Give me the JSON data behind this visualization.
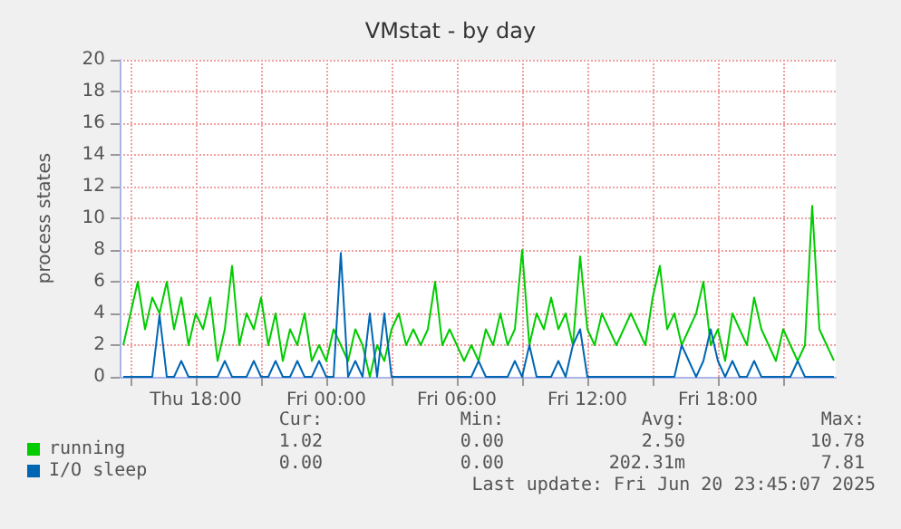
{
  "chart_data": {
    "type": "line",
    "title": "VMstat - by day",
    "ylabel": "process states",
    "x": [
      "2025-06-19T14:40",
      "2025-06-19T15:00",
      "2025-06-19T15:20",
      "2025-06-19T15:40",
      "2025-06-19T16:00",
      "2025-06-19T16:20",
      "2025-06-19T16:40",
      "2025-06-19T17:00",
      "2025-06-19T17:20",
      "2025-06-19T17:40",
      "2025-06-19T18:00",
      "2025-06-19T18:20",
      "2025-06-19T18:40",
      "2025-06-19T19:00",
      "2025-06-19T19:20",
      "2025-06-19T19:40",
      "2025-06-19T20:00",
      "2025-06-19T20:20",
      "2025-06-19T20:40",
      "2025-06-19T21:00",
      "2025-06-19T21:20",
      "2025-06-19T21:40",
      "2025-06-19T22:00",
      "2025-06-19T22:20",
      "2025-06-19T22:40",
      "2025-06-19T23:00",
      "2025-06-19T23:20",
      "2025-06-19T23:40",
      "2025-06-20T00:00",
      "2025-06-20T00:20",
      "2025-06-20T00:40",
      "2025-06-20T01:00",
      "2025-06-20T01:20",
      "2025-06-20T01:40",
      "2025-06-20T02:00",
      "2025-06-20T02:20",
      "2025-06-20T02:40",
      "2025-06-20T03:00",
      "2025-06-20T03:20",
      "2025-06-20T03:40",
      "2025-06-20T04:00",
      "2025-06-20T04:20",
      "2025-06-20T04:40",
      "2025-06-20T05:00",
      "2025-06-20T05:20",
      "2025-06-20T05:40",
      "2025-06-20T06:00",
      "2025-06-20T06:20",
      "2025-06-20T06:40",
      "2025-06-20T07:00",
      "2025-06-20T07:20",
      "2025-06-20T07:40",
      "2025-06-20T08:00",
      "2025-06-20T08:20",
      "2025-06-20T08:40",
      "2025-06-20T09:00",
      "2025-06-20T09:20",
      "2025-06-20T09:40",
      "2025-06-20T10:00",
      "2025-06-20T10:20",
      "2025-06-20T10:40",
      "2025-06-20T11:00",
      "2025-06-20T11:20",
      "2025-06-20T11:40",
      "2025-06-20T12:00",
      "2025-06-20T12:20",
      "2025-06-20T12:40",
      "2025-06-20T13:00",
      "2025-06-20T13:20",
      "2025-06-20T13:40",
      "2025-06-20T14:00",
      "2025-06-20T14:20",
      "2025-06-20T14:40",
      "2025-06-20T15:00",
      "2025-06-20T15:20",
      "2025-06-20T15:40",
      "2025-06-20T16:00",
      "2025-06-20T16:20",
      "2025-06-20T16:40",
      "2025-06-20T17:00",
      "2025-06-20T17:20",
      "2025-06-20T17:40",
      "2025-06-20T18:00",
      "2025-06-20T18:20",
      "2025-06-20T18:40",
      "2025-06-20T19:00",
      "2025-06-20T19:20",
      "2025-06-20T19:40",
      "2025-06-20T20:00",
      "2025-06-20T20:20",
      "2025-06-20T20:40",
      "2025-06-20T21:00",
      "2025-06-20T21:20",
      "2025-06-20T21:40",
      "2025-06-20T22:00",
      "2025-06-20T22:20",
      "2025-06-20T22:40",
      "2025-06-20T23:00",
      "2025-06-20T23:20"
    ],
    "series": [
      {
        "name": "running",
        "color": "#00cc00",
        "values": [
          2,
          4,
          6,
          3,
          5,
          4,
          6,
          3,
          5,
          2,
          4,
          3,
          5,
          1,
          3,
          7,
          2,
          4,
          3,
          5,
          2,
          4,
          1,
          3,
          2,
          4,
          1,
          2,
          1,
          3,
          2,
          1,
          3,
          2,
          0,
          2,
          1,
          3,
          4,
          2,
          3,
          2,
          3,
          6,
          2,
          3,
          2,
          1,
          2,
          1,
          3,
          2,
          4,
          2,
          3,
          8,
          2,
          4,
          3,
          5,
          3,
          4,
          2,
          7.6,
          3,
          2,
          4,
          3,
          2,
          3,
          4,
          3,
          2,
          5,
          7,
          3,
          4,
          2,
          3,
          4,
          6,
          2,
          3,
          1,
          4,
          3,
          2,
          5,
          3,
          2,
          1,
          3,
          2,
          1,
          2,
          10.78,
          3,
          2,
          1.02
        ]
      },
      {
        "name": "I/O sleep",
        "color": "#0066b3",
        "values": [
          0,
          0,
          0,
          0,
          0,
          3.9,
          0,
          0,
          1,
          0,
          0,
          0,
          0,
          0,
          1,
          0,
          0,
          0,
          1,
          0,
          0,
          1,
          0,
          0,
          1,
          0,
          0,
          1,
          0,
          0,
          7.81,
          0,
          1,
          0,
          4,
          0,
          4,
          0,
          0,
          0,
          0,
          0,
          0,
          0,
          0,
          0,
          0,
          0,
          0,
          1,
          0,
          0,
          0,
          0,
          1,
          0,
          2,
          0,
          0,
          0,
          1,
          0,
          2,
          3,
          0,
          0,
          0,
          0,
          0,
          0,
          0,
          0,
          0,
          0,
          0,
          0,
          0,
          2,
          1,
          0,
          1,
          3,
          1,
          0,
          1,
          0,
          0,
          1,
          0,
          0,
          0,
          0,
          0,
          1,
          0,
          0,
          0,
          0,
          0
        ]
      }
    ],
    "xlim": [
      "2025-06-19T14:30",
      "2025-06-20T23:25"
    ],
    "xticks": [
      {
        "value": "2025-06-19T15:00",
        "label": null
      },
      {
        "value": "2025-06-19T18:00",
        "label": "Thu 18:00"
      },
      {
        "value": "2025-06-19T21:00",
        "label": null
      },
      {
        "value": "2025-06-20T00:00",
        "label": "Fri 00:00"
      },
      {
        "value": "2025-06-20T03:00",
        "label": null
      },
      {
        "value": "2025-06-20T06:00",
        "label": "Fri 06:00"
      },
      {
        "value": "2025-06-20T09:00",
        "label": null
      },
      {
        "value": "2025-06-20T12:00",
        "label": "Fri 12:00"
      },
      {
        "value": "2025-06-20T15:00",
        "label": null
      },
      {
        "value": "2025-06-20T18:00",
        "label": "Fri 18:00"
      },
      {
        "value": "2025-06-20T21:00",
        "label": null
      }
    ],
    "ylim": [
      0,
      20
    ],
    "yticks": [
      0,
      2,
      4,
      6,
      8,
      10,
      12,
      14,
      16,
      18,
      20
    ],
    "grid": true,
    "legend": "bottom left",
    "marker": "none",
    "line_style": "solid",
    "annotations": [
      "Cur:",
      "Min:",
      "Avg:",
      "Max:",
      "1.02",
      "0.00",
      "2.50",
      "10.78",
      "0.00",
      "0.00",
      "202.31m",
      "7.81",
      "Last update: Fri Jun 20 23:45:07 2025"
    ]
  }
}
